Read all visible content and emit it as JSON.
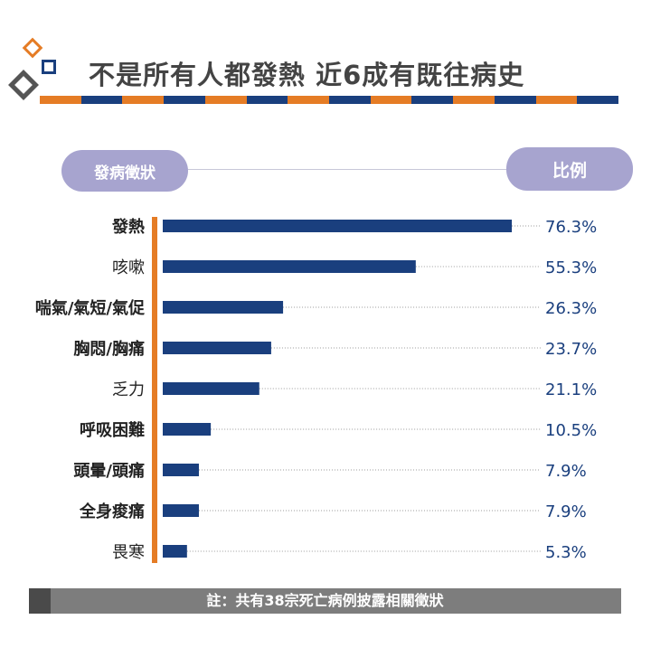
{
  "title": "不是所有人都發熱 近6成有既往病史",
  "header": {
    "left_label": "發病徵狀",
    "right_label": "比例"
  },
  "note": "註：共有38宗死亡病例披露相關徵狀",
  "colors": {
    "bar": "#1a3f7e",
    "accent": "#e57c25",
    "pill": "#a7a4cf",
    "text": "#222222",
    "value": "#1a3f7e"
  },
  "chart_data": {
    "type": "bar",
    "orientation": "horizontal",
    "categories": [
      "發熱",
      "咳嗽",
      "喘氣/氣短/氣促",
      "胸悶/胸痛",
      "乏力",
      "呼吸困難",
      "頭暈/頭痛",
      "全身痠痛",
      "畏寒"
    ],
    "values": [
      76.3,
      55.3,
      26.3,
      23.7,
      21.1,
      10.5,
      7.9,
      7.9,
      5.3
    ],
    "value_labels": [
      "76.3%",
      "55.3%",
      "26.3%",
      "23.7%",
      "21.1%",
      "10.5%",
      "7.9%",
      "7.9%",
      "5.3%"
    ],
    "bold_categories": [
      true,
      false,
      true,
      true,
      false,
      true,
      true,
      true,
      false
    ],
    "unit": "%",
    "xlim": [
      0,
      100
    ],
    "grid": false,
    "legend": "none"
  }
}
